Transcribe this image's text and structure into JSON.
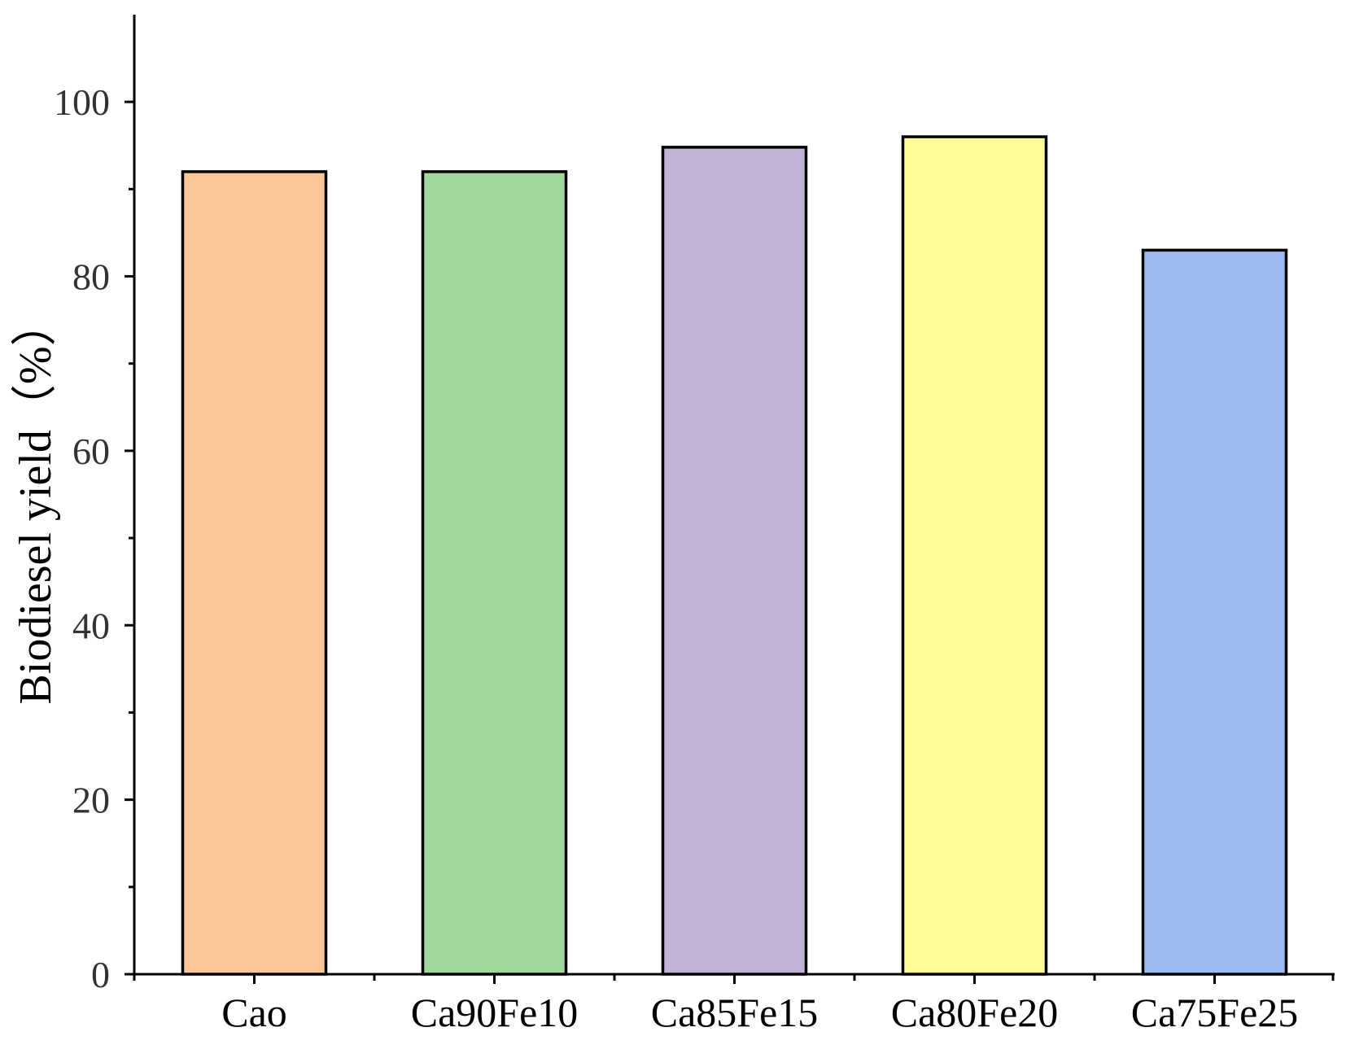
{
  "chart_data": {
    "type": "bar",
    "title": "",
    "xlabel": "",
    "ylabel": "Biodiesel yield（%）",
    "ylim": [
      0,
      110
    ],
    "yticks": [
      0,
      20,
      40,
      60,
      80,
      100
    ],
    "grid": false,
    "categories": [
      "Cao",
      "Ca90Fe10",
      "Ca85Fe15",
      "Ca80Fe20",
      "Ca75Fe25"
    ],
    "values": [
      92,
      92,
      94.8,
      96,
      83
    ],
    "colors": [
      "#FAC898",
      "#A0D89C",
      "#C1B2D6",
      "#FDFD9A",
      "#9DBBF1"
    ]
  }
}
